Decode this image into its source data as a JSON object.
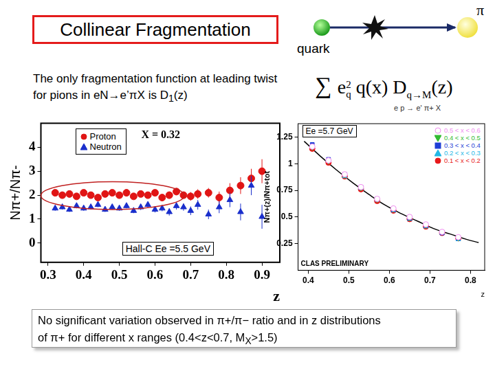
{
  "slide": {
    "title": "Collinear Fragmentation",
    "pi_label": "π",
    "quark_label": "quark",
    "intro": {
      "line1": "The only fragmentation function at leading twist",
      "line2": "for pions in eN→e’πX is D",
      "line2_sub": "1",
      "line2_end": "(z)"
    },
    "formula": {
      "sum": "∑",
      "e": "e",
      "e_sub": "q",
      "e_sup": "2",
      "qx": "q(x)",
      "D": "D",
      "D_sub": "q→M",
      "z": "(z)"
    },
    "reaction": "e p → e' π+ X",
    "footer": {
      "line1": "No significant variation observed in π+/π− ratio and  in z distributions",
      "line2": "of π+ for  different x ranges (0.4<z<0.7, M",
      "line2_sub": "X",
      "line2_end": ">1.5)"
    }
  },
  "chart_data": [
    {
      "type": "scatter",
      "x_label": "z",
      "y_label": "Nπ+/Nπ-",
      "annotations": [
        "X = 0.32",
        "Hall-C Ee =5.5 GeV"
      ],
      "xlim": [
        0.28,
        0.95
      ],
      "xticks": [
        0.3,
        0.4,
        0.5,
        0.6,
        0.7,
        0.8,
        0.9
      ],
      "ylim": [
        -0.8,
        5
      ],
      "yticks": [
        0,
        1,
        2,
        3,
        4
      ],
      "grid": false,
      "legend": "upper left",
      "series": [
        {
          "name": "Proton",
          "color": "#e01515",
          "marker": "circle",
          "x": [
            0.32,
            0.34,
            0.36,
            0.38,
            0.4,
            0.42,
            0.44,
            0.46,
            0.48,
            0.5,
            0.52,
            0.54,
            0.56,
            0.58,
            0.6,
            0.62,
            0.64,
            0.66,
            0.68,
            0.7,
            0.72,
            0.75,
            0.78,
            0.81,
            0.84,
            0.87,
            0.9
          ],
          "values": [
            2.1,
            2.0,
            2.05,
            1.95,
            2.1,
            2.0,
            1.9,
            2.05,
            2.1,
            2.0,
            2.1,
            1.95,
            2.05,
            2.0,
            2.1,
            1.9,
            2.0,
            2.15,
            2.0,
            1.95,
            2.05,
            2.1,
            1.9,
            2.2,
            2.4,
            2.7,
            3.0
          ],
          "errors": [
            0.1,
            0.1,
            0.1,
            0.1,
            0.1,
            0.1,
            0.1,
            0.1,
            0.1,
            0.1,
            0.1,
            0.1,
            0.12,
            0.12,
            0.12,
            0.12,
            0.15,
            0.15,
            0.15,
            0.18,
            0.2,
            0.2,
            0.25,
            0.3,
            0.35,
            0.4,
            0.5
          ]
        },
        {
          "name": "Neutron",
          "color": "#1a2fcc",
          "marker": "triangle",
          "x": [
            0.32,
            0.34,
            0.36,
            0.38,
            0.4,
            0.42,
            0.44,
            0.46,
            0.48,
            0.5,
            0.52,
            0.54,
            0.56,
            0.58,
            0.6,
            0.62,
            0.64,
            0.66,
            0.68,
            0.7,
            0.72,
            0.75,
            0.78,
            0.81,
            0.84,
            0.87,
            0.9
          ],
          "values": [
            1.45,
            1.5,
            1.4,
            1.55,
            1.45,
            1.5,
            1.6,
            1.4,
            1.5,
            1.45,
            1.55,
            1.35,
            1.5,
            1.6,
            1.4,
            1.45,
            1.3,
            1.55,
            1.5,
            1.35,
            1.6,
            1.2,
            1.5,
            1.8,
            1.3,
            2.4,
            1.1
          ],
          "errors": [
            0.1,
            0.1,
            0.1,
            0.1,
            0.1,
            0.1,
            0.1,
            0.1,
            0.1,
            0.1,
            0.1,
            0.1,
            0.12,
            0.12,
            0.12,
            0.12,
            0.15,
            0.15,
            0.15,
            0.18,
            0.2,
            0.2,
            0.25,
            0.3,
            0.35,
            0.4,
            0.5
          ]
        }
      ]
    },
    {
      "type": "scatter",
      "x_label": "z",
      "y_label": "Nπ+(z)/Nπ+tot",
      "annotations": [
        "Ee =5.7 GeV",
        "CLAS PRELIMINARY"
      ],
      "xlim": [
        0.375,
        0.835
      ],
      "xticks": [
        0.4,
        0.5,
        0.6,
        0.7,
        0.8
      ],
      "ylim": [
        0,
        1.375
      ],
      "yticks": [
        0.25,
        0.5,
        0.75,
        1,
        1.25
      ],
      "grid": false,
      "legend": "upper right",
      "series": [
        {
          "name": "0.5 < x < 0.6",
          "color": "#f08cf0",
          "marker": "circle-open",
          "x": [
            0.41,
            0.45,
            0.49,
            0.53,
            0.57,
            0.61,
            0.65,
            0.69,
            0.73,
            0.77
          ],
          "values": [
            1.16,
            1.03,
            0.9,
            0.78,
            0.67,
            0.58,
            0.5,
            0.43,
            0.36,
            0.31
          ]
        },
        {
          "name": "0.4 < x < 0.5",
          "color": "#33bb33",
          "marker": "triangle-down",
          "x": [
            0.41,
            0.45,
            0.49,
            0.53,
            0.57,
            0.61,
            0.65,
            0.69,
            0.73,
            0.77
          ],
          "values": [
            1.15,
            1.02,
            0.89,
            0.77,
            0.66,
            0.57,
            0.49,
            0.42,
            0.36,
            0.3
          ]
        },
        {
          "name": "0.3 < x < 0.4",
          "color": "#1f3fd6",
          "marker": "square",
          "x": [
            0.41,
            0.45,
            0.49,
            0.53,
            0.57,
            0.61,
            0.65,
            0.69,
            0.73,
            0.77
          ],
          "values": [
            1.18,
            1.04,
            0.9,
            0.78,
            0.67,
            0.57,
            0.49,
            0.42,
            0.35,
            0.3
          ]
        },
        {
          "name": "0.2 < x < 0.3",
          "color": "#22b8e6",
          "marker": "triangle",
          "x": [
            0.41,
            0.45,
            0.49,
            0.53,
            0.57,
            0.61,
            0.65,
            0.69,
            0.73,
            0.77
          ],
          "values": [
            1.17,
            1.03,
            0.88,
            0.77,
            0.66,
            0.56,
            0.48,
            0.41,
            0.35,
            0.29
          ]
        },
        {
          "name": "0.1 < x < 0.2",
          "color": "#e8191b",
          "marker": "circle",
          "x": [
            0.41,
            0.45,
            0.49,
            0.53,
            0.57,
            0.61,
            0.65,
            0.69,
            0.73,
            0.77
          ],
          "values": [
            1.14,
            1.01,
            0.88,
            0.76,
            0.65,
            0.56,
            0.48,
            0.41,
            0.35,
            0.3
          ]
        },
        {
          "type": "line",
          "color": "#000000",
          "marker": "none",
          "line_style": "solid",
          "x": [
            0.39,
            0.43,
            0.47,
            0.51,
            0.55,
            0.59,
            0.63,
            0.67,
            0.71,
            0.75,
            0.79,
            0.82
          ],
          "values": [
            1.21,
            1.07,
            0.94,
            0.82,
            0.71,
            0.61,
            0.53,
            0.46,
            0.39,
            0.34,
            0.29,
            0.26
          ]
        }
      ]
    }
  ]
}
